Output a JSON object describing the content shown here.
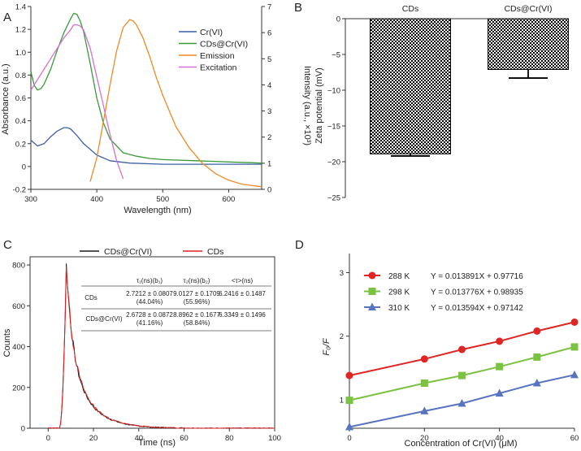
{
  "panels": {
    "a": "A",
    "b": "B",
    "c": "C",
    "d": "D"
  },
  "chart_data": [
    {
      "id": "A",
      "type": "line",
      "xlabel": "Wavelength (nm)",
      "ylabel": "Absorbance (a.u.)",
      "y2label": "Intensity (a.u., ×10³)",
      "xlim": [
        300,
        650
      ],
      "ylim": [
        -0.2,
        1.4
      ],
      "y2lim": [
        0,
        7
      ],
      "xticks": [
        "300",
        "400",
        "500",
        "600"
      ],
      "yticks": [
        "-0.2",
        "0",
        "0.2",
        "0.4",
        "0.6",
        "0.8",
        "1.0",
        "1.2",
        "1.4"
      ],
      "y2ticks": [
        "0",
        "1",
        "2",
        "3",
        "4",
        "5",
        "6",
        "7"
      ],
      "legend": [
        "Cr(VI)",
        "CDs@Cr(VI)",
        "Emission",
        "Excitation"
      ],
      "colors": [
        "#3b5fa8",
        "#3a9a3a",
        "#f08a24",
        "#d86fd3"
      ],
      "series": [
        {
          "name": "Cr(VI)",
          "axis": "left",
          "x": [
            300,
            310,
            320,
            330,
            340,
            350,
            355,
            360,
            370,
            380,
            400,
            420,
            450,
            500,
            550,
            600,
            650
          ],
          "y": [
            0.23,
            0.18,
            0.2,
            0.26,
            0.31,
            0.34,
            0.34,
            0.33,
            0.27,
            0.2,
            0.1,
            0.05,
            0.03,
            0.02,
            0.02,
            0.02,
            0.02
          ]
        },
        {
          "name": "CDs@Cr(VI)",
          "axis": "left",
          "x": [
            300,
            305,
            310,
            315,
            320,
            330,
            340,
            350,
            360,
            365,
            370,
            375,
            380,
            390,
            400,
            410,
            420,
            440,
            460,
            480,
            500,
            550,
            600,
            650
          ],
          "y": [
            0.83,
            0.71,
            0.67,
            0.68,
            0.72,
            0.85,
            1.02,
            1.17,
            1.29,
            1.34,
            1.33,
            1.27,
            1.18,
            0.9,
            0.6,
            0.38,
            0.24,
            0.12,
            0.09,
            0.07,
            0.06,
            0.05,
            0.04,
            0.03
          ]
        },
        {
          "name": "Emission",
          "axis": "right",
          "x": [
            390,
            400,
            410,
            420,
            430,
            440,
            450,
            455,
            460,
            470,
            480,
            490,
            500,
            520,
            540,
            560,
            580,
            600,
            620,
            650
          ],
          "y": [
            0.3,
            1.2,
            2.6,
            4.0,
            5.3,
            6.2,
            6.5,
            6.45,
            6.3,
            5.8,
            5.1,
            4.3,
            3.6,
            2.4,
            1.6,
            1.0,
            0.6,
            0.35,
            0.2,
            0.1
          ]
        },
        {
          "name": "Excitation",
          "axis": "right",
          "x": [
            300,
            310,
            320,
            330,
            340,
            350,
            360,
            365,
            370,
            375,
            380,
            390,
            400,
            410,
            420,
            430,
            440
          ],
          "y": [
            3.8,
            4.2,
            4.6,
            5.0,
            5.4,
            5.8,
            6.1,
            6.3,
            6.3,
            6.25,
            6.1,
            5.4,
            4.3,
            3.2,
            2.1,
            1.1,
            0.4
          ]
        }
      ]
    },
    {
      "id": "B",
      "type": "bar",
      "categories": [
        "CDs",
        "CDs@Cr(VI)"
      ],
      "values": [
        -18.9,
        -7.1
      ],
      "errors": [
        0.3,
        1.2
      ],
      "ylabel": "Zeta potential (mV)",
      "ylim": [
        -25,
        0
      ],
      "yticks": [
        "0",
        "−5",
        "−10",
        "−15",
        "−20",
        "−25"
      ]
    },
    {
      "id": "C",
      "type": "line",
      "xlabel": "Time (ns)",
      "ylabel": "Counts",
      "xlim": [
        -8,
        100
      ],
      "ylim": [
        0,
        840
      ],
      "xticks": [
        "0",
        "20",
        "40",
        "60",
        "80",
        "100"
      ],
      "yticks": [
        "0",
        "200",
        "400",
        "600",
        "800"
      ],
      "legend": [
        "CDs@Cr(VI)",
        "CDs"
      ],
      "colors": [
        "#1a1a1a",
        "#e02020"
      ],
      "table": {
        "headers": [
          "τ₁(ns)(b₁)",
          "τ₂(ns)(b₂)",
          "<τ>(ns)"
        ],
        "rows": [
          {
            "label": "CDs",
            "tau1": "2.7212 ± 0.0807",
            "b1": "(44.04%)",
            "tau2": "9.0127 ± 0.1709",
            "b2": "(55.96%)",
            "avg": "6.2416 ± 0.1487"
          },
          {
            "label": "CDs@Cr(VI)",
            "tau1": "2.6728 ± 0.0872",
            "b1": "(41.16%)",
            "tau2": "8.8962 ± 0.1677",
            "b2": "(58.84%)",
            "avg": "6.3349 ± 0.1496"
          }
        ]
      }
    },
    {
      "id": "D",
      "type": "scatter",
      "xlabel": "Concentration of Cr(VI) (μM)",
      "ylabel": "F₀/F",
      "xlim": [
        0,
        60
      ],
      "ylim": [
        0.55,
        3.3
      ],
      "xticks": [
        "0",
        "20",
        "40",
        "60"
      ],
      "yticks": [
        "1",
        "2",
        "3"
      ],
      "series": [
        {
          "name": "288 K",
          "equation": "Y = 0.013891X + 0.97716",
          "color": "#e02525",
          "marker": "circle",
          "x": [
            0,
            20,
            30,
            40,
            50,
            60
          ],
          "y": [
            1.38,
            1.64,
            1.79,
            1.92,
            2.08,
            2.22
          ]
        },
        {
          "name": "298 K",
          "equation": "Y = 0.013776X + 0.98935",
          "color": "#7cc242",
          "marker": "square",
          "x": [
            0,
            20,
            30,
            40,
            50,
            60
          ],
          "y": [
            0.99,
            1.26,
            1.38,
            1.52,
            1.67,
            1.83
          ]
        },
        {
          "name": "310 K",
          "equation": "Y = 0.013594X + 0.97142",
          "color": "#5874c0",
          "marker": "triangle",
          "x": [
            0,
            20,
            30,
            40,
            50,
            60
          ],
          "y": [
            0.57,
            0.82,
            0.94,
            1.1,
            1.26,
            1.39
          ]
        }
      ]
    }
  ]
}
